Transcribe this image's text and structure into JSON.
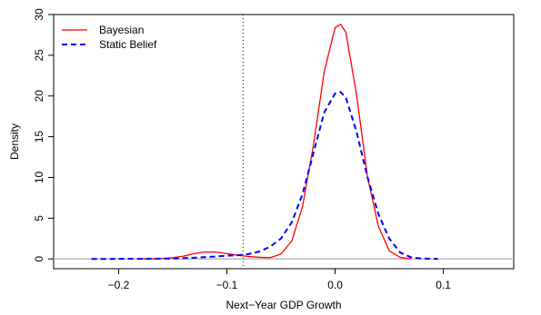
{
  "chart_data": {
    "type": "line",
    "xlabel": "Next−Year GDP Growth",
    "ylabel": "Density",
    "xlim": [
      -0.26,
      0.165
    ],
    "ylim": [
      -1.2,
      30
    ],
    "x_ticks": [
      -0.2,
      -0.1,
      0.0,
      0.1
    ],
    "x_tick_labels": [
      "−0.2",
      "−0.1",
      "0.0",
      "0.1"
    ],
    "y_ticks": [
      0,
      5,
      10,
      15,
      20,
      25,
      30
    ],
    "y_tick_labels": [
      "0",
      "5",
      "10",
      "15",
      "20",
      "25",
      "30"
    ],
    "grid": false,
    "legend_position": "top-left",
    "horizontal_reference": {
      "y": 0,
      "color": "#bebebe"
    },
    "vertical_reference": {
      "x": -0.085,
      "style": "dotted",
      "color": "#000000"
    },
    "series": [
      {
        "name": "Bayesian",
        "color": "#ff0000",
        "dash": "solid",
        "x": [
          -0.18,
          -0.16,
          -0.15,
          -0.14,
          -0.13,
          -0.12,
          -0.11,
          -0.1,
          -0.09,
          -0.08,
          -0.07,
          -0.06,
          -0.05,
          -0.04,
          -0.03,
          -0.02,
          -0.01,
          0.0,
          0.005,
          0.01,
          0.02,
          0.03,
          0.04,
          0.05,
          0.06,
          0.07
        ],
        "y": [
          0.02,
          0.05,
          0.15,
          0.35,
          0.65,
          0.85,
          0.85,
          0.65,
          0.45,
          0.3,
          0.2,
          0.15,
          0.6,
          2.2,
          6.5,
          14.0,
          23.0,
          28.4,
          28.8,
          27.8,
          20.0,
          10.0,
          4.0,
          1.0,
          0.2,
          0.0
        ]
      },
      {
        "name": "Static Belief",
        "color": "#0000ff",
        "dash": "dashed",
        "x": [
          -0.225,
          -0.18,
          -0.15,
          -0.13,
          -0.11,
          -0.1,
          -0.09,
          -0.08,
          -0.07,
          -0.06,
          -0.05,
          -0.04,
          -0.03,
          -0.02,
          -0.01,
          0.0,
          0.005,
          0.01,
          0.02,
          0.03,
          0.04,
          0.05,
          0.06,
          0.07,
          0.08,
          0.095
        ],
        "y": [
          0.0,
          0.01,
          0.05,
          0.15,
          0.3,
          0.4,
          0.45,
          0.6,
          0.9,
          1.5,
          2.5,
          4.5,
          8.0,
          13.0,
          18.0,
          20.3,
          20.5,
          19.8,
          15.5,
          10.0,
          5.5,
          2.5,
          0.8,
          0.2,
          0.05,
          0.0
        ]
      }
    ]
  }
}
